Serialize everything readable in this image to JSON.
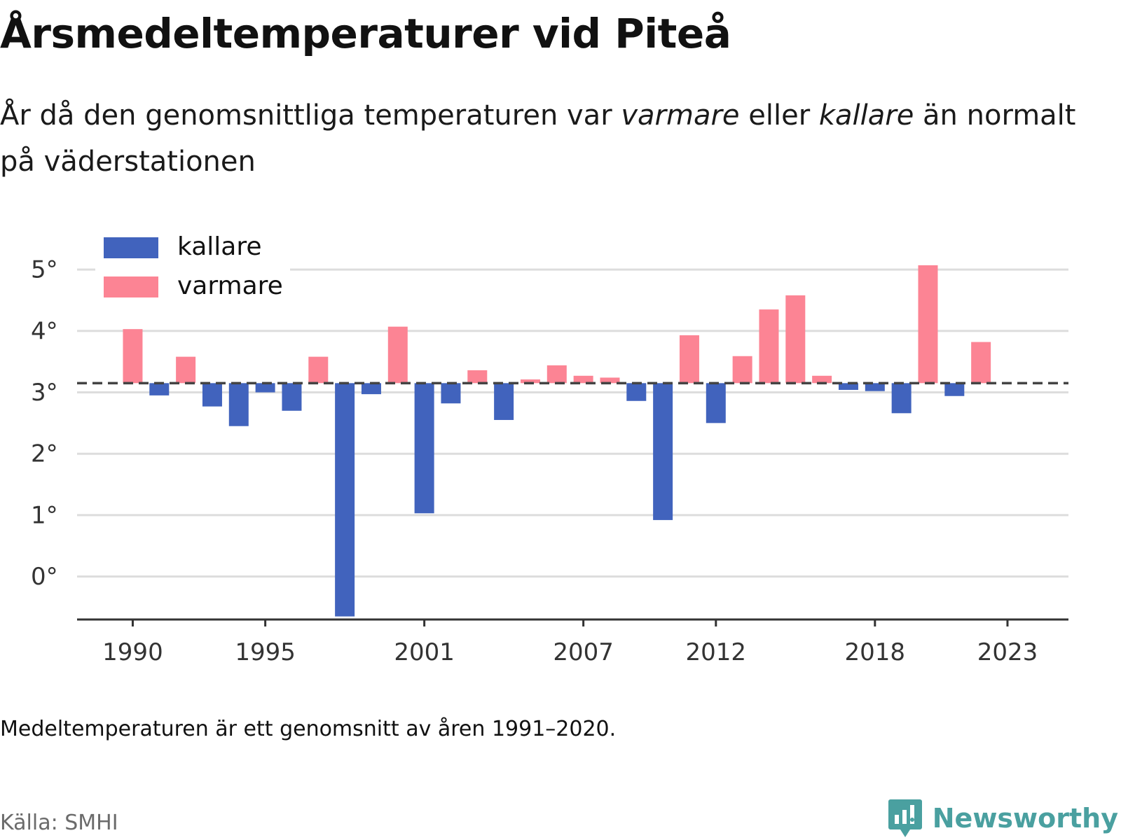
{
  "header": {
    "title": "Årsmedeltemperaturer vid Piteå",
    "subtitle_part1": "År då den genomsnittliga temperaturen var ",
    "subtitle_em1": "varmare",
    "subtitle_part2": " eller ",
    "subtitle_em2": "kallare",
    "subtitle_part3": " än normalt på väderstationen"
  },
  "footer": {
    "note": "Medeltemperaturen är ett genomsnitt av åren 1991–2020.",
    "source": "Källa: SMHI",
    "brand": "Newsworthy"
  },
  "colors": {
    "kallare": "#4163bd",
    "varmare": "#fc8494",
    "grid": "#dddddd",
    "axis": "#333333",
    "normal_line": "#444444",
    "brand": "#4aa0a0"
  },
  "chart_data": {
    "type": "bar",
    "normal": 3.15,
    "ylim": [
      -0.7,
      5.4
    ],
    "y_ticks": [
      0,
      1,
      2,
      3,
      4,
      5
    ],
    "y_tick_labels": [
      "0°",
      "1°",
      "2°",
      "3°",
      "4°",
      "5°"
    ],
    "x_tick_years": [
      1990,
      1995,
      2001,
      2007,
      2012,
      2018,
      2023
    ],
    "x_tick_labels": [
      "1990",
      "1995",
      "2001",
      "2007",
      "2012",
      "2018",
      "2023"
    ],
    "x_range": [
      1987.9,
      2025.3
    ],
    "legend": [
      {
        "key": "kallare",
        "label": "kallare"
      },
      {
        "key": "varmare",
        "label": "varmare"
      }
    ],
    "legend_position": "top-left",
    "grid": true,
    "years": [
      1990,
      1991,
      1992,
      1993,
      1994,
      1995,
      1996,
      1997,
      1998,
      1999,
      2000,
      2001,
      2002,
      2003,
      2004,
      2005,
      2006,
      2007,
      2008,
      2009,
      2010,
      2011,
      2012,
      2013,
      2014,
      2015,
      2016,
      2017,
      2018,
      2019,
      2020,
      2021,
      2022
    ],
    "values": [
      4.03,
      2.95,
      3.58,
      2.77,
      2.45,
      3.0,
      2.7,
      3.58,
      -0.65,
      2.97,
      4.07,
      1.03,
      2.82,
      3.36,
      2.55,
      3.21,
      3.44,
      3.27,
      3.24,
      2.86,
      0.92,
      3.93,
      2.5,
      3.59,
      4.35,
      4.58,
      3.27,
      3.04,
      3.02,
      2.66,
      5.07,
      2.94,
      3.82
    ]
  }
}
